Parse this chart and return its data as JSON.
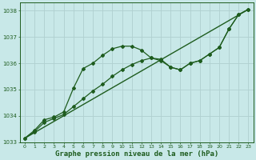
{
  "xlabel": "Graphe pression niveau de la mer (hPa)",
  "ylim": [
    1033.0,
    1038.3
  ],
  "xlim": [
    -0.5,
    23.5
  ],
  "yticks": [
    1033,
    1034,
    1035,
    1036,
    1037,
    1038
  ],
  "xticks": [
    0,
    1,
    2,
    3,
    4,
    5,
    6,
    7,
    8,
    9,
    10,
    11,
    12,
    13,
    14,
    15,
    16,
    17,
    18,
    19,
    20,
    21,
    22,
    23
  ],
  "bg_color": "#c8e8e8",
  "grid_color": "#b0d0d0",
  "line_color": "#1e5c1e",
  "line1_y": [
    1033.15,
    1033.45,
    1033.85,
    1033.95,
    1034.15,
    1035.05,
    1035.8,
    1036.0,
    1036.3,
    1036.55,
    1036.65,
    1036.65,
    1036.5,
    1036.2,
    1036.15,
    1035.85,
    1035.75,
    1036.0,
    1036.1,
    1036.35,
    1036.6,
    1037.3,
    1037.85,
    1038.05
  ],
  "line2_y": [
    1033.15,
    1033.4,
    1033.75,
    1033.9,
    1034.05,
    1034.35,
    1034.65,
    1034.95,
    1035.2,
    1035.5,
    1035.75,
    1035.95,
    1036.1,
    1036.2,
    1036.1,
    1035.85,
    1035.75,
    1036.0,
    1036.1,
    1036.35,
    1036.6,
    1037.3,
    1037.85,
    1038.05
  ],
  "marker": "D",
  "markersize": 2.0,
  "linewidth": 0.9
}
